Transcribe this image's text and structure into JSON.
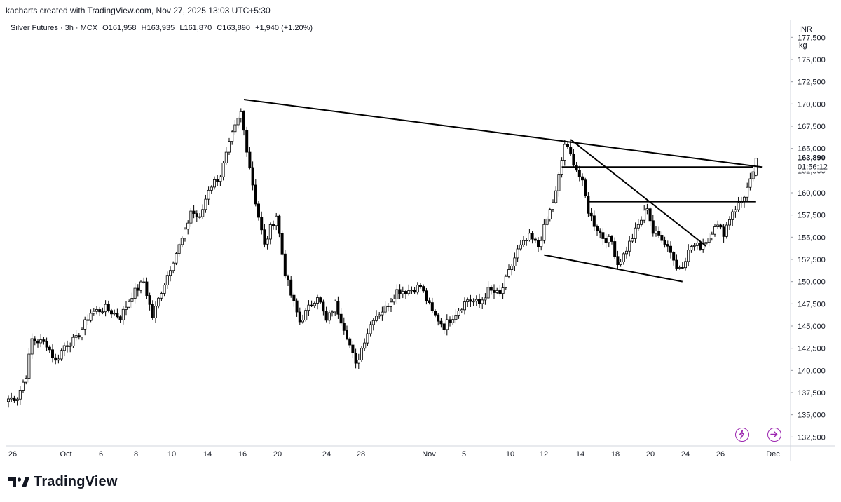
{
  "header": {
    "attribution": "kacharts created with TradingView.com, Nov 27, 2025 13:03 UTC+5:30"
  },
  "legend": {
    "symbol": "Silver Futures · 3h · MCX",
    "open": "O161,958",
    "high": "H163,935",
    "low": "L161,870",
    "close": "C163,890",
    "change": "+1,940 (+1.20%)"
  },
  "scale": {
    "currency": "INR",
    "unit": "kg"
  },
  "price_tag": {
    "price": "163,890",
    "countdown": "01:56:12"
  },
  "icons": {
    "alert": "lightning-icon",
    "goto_realtime": "arrow-right-icon"
  },
  "colors": {
    "up": "#ffffff",
    "down": "#000000",
    "outline": "#000000",
    "trendline": "#000000",
    "icon_accent": "#9c27b0",
    "grid": "#ffffff"
  },
  "footer": {
    "brand": "TradingView"
  },
  "chart_data": {
    "type": "candlestick",
    "title": "",
    "xlabel": "",
    "ylabel": "",
    "grid": false,
    "ylim": [
      131500,
      179500
    ],
    "y_ticks": [
      "132,500",
      "135,000",
      "137,500",
      "140,000",
      "142,500",
      "145,000",
      "147,500",
      "150,000",
      "152,500",
      "155,000",
      "157,500",
      "160,000",
      "162,500",
      "165,000",
      "167,500",
      "170,000",
      "172,500",
      "175,000",
      "177,500"
    ],
    "x_ticks": [
      "26",
      "Oct",
      "6",
      "8",
      "10",
      "14",
      "16",
      "20",
      "24",
      "28",
      "Nov",
      "5",
      "10",
      "12",
      "14",
      "18",
      "20",
      "24",
      "26",
      "Dec"
    ],
    "series": [
      {
        "anchors": [
          {
            "i": 0,
            "p": 136800
          },
          {
            "i": 3,
            "p": 137000
          },
          {
            "i": 6,
            "p": 139500
          },
          {
            "i": 8,
            "p": 143500
          },
          {
            "i": 13,
            "p": 143000
          },
          {
            "i": 16,
            "p": 141000
          },
          {
            "i": 19,
            "p": 142800
          },
          {
            "i": 23,
            "p": 143500
          },
          {
            "i": 28,
            "p": 146500
          },
          {
            "i": 33,
            "p": 147000
          },
          {
            "i": 38,
            "p": 146000
          },
          {
            "i": 42,
            "p": 148500
          },
          {
            "i": 46,
            "p": 150000
          },
          {
            "i": 49,
            "p": 146000
          },
          {
            "i": 52,
            "p": 149000
          },
          {
            "i": 56,
            "p": 152500
          },
          {
            "i": 60,
            "p": 155500
          },
          {
            "i": 62,
            "p": 158000
          },
          {
            "i": 65,
            "p": 157000
          },
          {
            "i": 68,
            "p": 160500
          },
          {
            "i": 72,
            "p": 162000
          },
          {
            "i": 76,
            "p": 166500
          },
          {
            "i": 79,
            "p": 169000
          },
          {
            "i": 81,
            "p": 165000
          },
          {
            "i": 84,
            "p": 159000
          },
          {
            "i": 87,
            "p": 154000
          },
          {
            "i": 89,
            "p": 156000
          },
          {
            "i": 91,
            "p": 157500
          },
          {
            "i": 94,
            "p": 151000
          },
          {
            "i": 96,
            "p": 148500
          },
          {
            "i": 99,
            "p": 145500
          },
          {
            "i": 102,
            "p": 147000
          },
          {
            "i": 105,
            "p": 148500
          },
          {
            "i": 108,
            "p": 145500
          },
          {
            "i": 111,
            "p": 147500
          },
          {
            "i": 115,
            "p": 144000
          },
          {
            "i": 118,
            "p": 140500
          },
          {
            "i": 121,
            "p": 143500
          },
          {
            "i": 124,
            "p": 146000
          },
          {
            "i": 128,
            "p": 147000
          },
          {
            "i": 132,
            "p": 149000
          },
          {
            "i": 136,
            "p": 149000
          },
          {
            "i": 140,
            "p": 149500
          },
          {
            "i": 144,
            "p": 146500
          },
          {
            "i": 148,
            "p": 145000
          },
          {
            "i": 152,
            "p": 146500
          },
          {
            "i": 156,
            "p": 148000
          },
          {
            "i": 160,
            "p": 147500
          },
          {
            "i": 163,
            "p": 149000
          },
          {
            "i": 167,
            "p": 148500
          },
          {
            "i": 170,
            "p": 151000
          },
          {
            "i": 173,
            "p": 153500
          },
          {
            "i": 177,
            "p": 155000
          },
          {
            "i": 180,
            "p": 154000
          },
          {
            "i": 183,
            "p": 157000
          },
          {
            "i": 186,
            "p": 160000
          },
          {
            "i": 189,
            "p": 165500
          },
          {
            "i": 192,
            "p": 163500
          },
          {
            "i": 195,
            "p": 161000
          },
          {
            "i": 197,
            "p": 158000
          },
          {
            "i": 199,
            "p": 156500
          },
          {
            "i": 202,
            "p": 155000
          },
          {
            "i": 205,
            "p": 154500
          },
          {
            "i": 207,
            "p": 152000
          },
          {
            "i": 209,
            "p": 153000
          },
          {
            "i": 212,
            "p": 155000
          },
          {
            "i": 215,
            "p": 157000
          },
          {
            "i": 217,
            "p": 158500
          },
          {
            "i": 219,
            "p": 155500
          },
          {
            "i": 222,
            "p": 155000
          },
          {
            "i": 225,
            "p": 153500
          },
          {
            "i": 227,
            "p": 151500
          },
          {
            "i": 229,
            "p": 152000
          },
          {
            "i": 232,
            "p": 154000
          },
          {
            "i": 235,
            "p": 154000
          },
          {
            "i": 238,
            "p": 155000
          },
          {
            "i": 240,
            "p": 156500
          },
          {
            "i": 243,
            "p": 155500
          },
          {
            "i": 246,
            "p": 158000
          },
          {
            "i": 249,
            "p": 159000
          },
          {
            "i": 251,
            "p": 160500
          },
          {
            "i": 253,
            "p": 161958
          },
          {
            "i": 254,
            "p": 163890
          }
        ],
        "bar_count": 255,
        "last": {
          "open": 161958,
          "high": 163935,
          "low": 161870,
          "close": 163890
        }
      }
    ],
    "annotations": [
      {
        "type": "trendline",
        "from": {
          "i": 80,
          "p": 170500
        },
        "to": {
          "i": 256,
          "p": 162900
        }
      },
      {
        "type": "trendline",
        "from": {
          "i": 191,
          "p": 166000
        },
        "to": {
          "i": 237,
          "p": 154000
        }
      },
      {
        "type": "trendline",
        "from": {
          "i": 182,
          "p": 153000
        },
        "to": {
          "i": 229,
          "p": 150000
        }
      },
      {
        "type": "horizontal",
        "from": {
          "i": 188,
          "p": 162900
        },
        "to": {
          "i": 253,
          "p": 162900
        }
      },
      {
        "type": "horizontal",
        "from": {
          "i": 197,
          "p": 159000
        },
        "to": {
          "i": 254,
          "p": 159000
        }
      }
    ]
  }
}
